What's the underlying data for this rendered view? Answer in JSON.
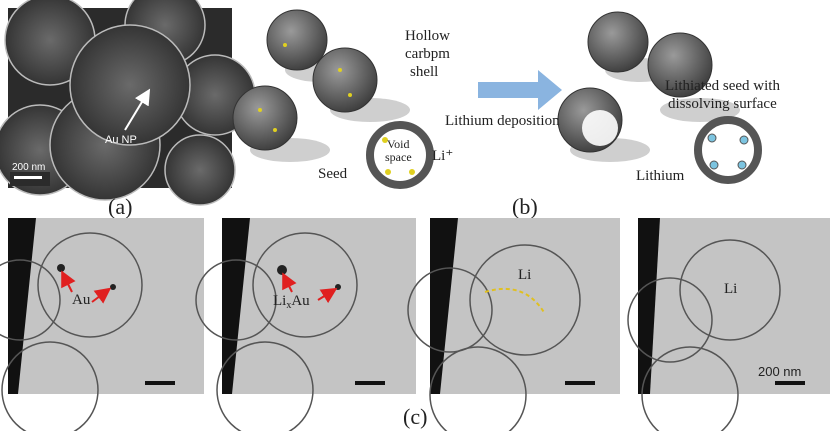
{
  "panel_a": {
    "label": "(a)",
    "annotation": "Au NP",
    "scale_bar": "200 nm"
  },
  "panel_b": {
    "label": "(b)",
    "shell_label": [
      "Hollow",
      "carbpm",
      "shell"
    ],
    "void_label": [
      "Void",
      "space"
    ],
    "ion": "Li⁺",
    "seed_label": "Seed",
    "arrow_label": "Lithium deposition",
    "lithiated_label": [
      "Lithiated seed with",
      "dissolving surface"
    ],
    "lithium_label": "Lithium"
  },
  "panel_c": {
    "label": "(c)",
    "frames": [
      {
        "annotation": "Au"
      },
      {
        "annotation": {
          "base": "Li",
          "sub": "x",
          "tail": "Au"
        }
      },
      {
        "annotation": "Li"
      },
      {
        "annotation": "Li",
        "scale_bar": "200 nm"
      }
    ]
  }
}
